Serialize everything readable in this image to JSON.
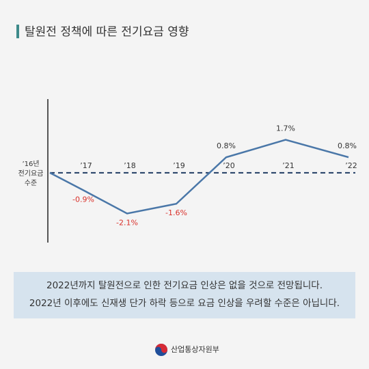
{
  "chart_data": {
    "type": "line",
    "title": "탈원전 정책에 따른 전기요금 영향",
    "categories": [
      "’16년 전기요금 수준",
      "’17",
      "’18",
      "’19",
      "’20",
      "’21",
      "’22"
    ],
    "values": [
      0,
      -0.9,
      -2.1,
      -1.6,
      0.8,
      1.7,
      0.8
    ],
    "value_labels": [
      null,
      "-0.9%",
      "-2.1%",
      "-1.6%",
      "0.8%",
      "1.7%",
      "0.8%"
    ],
    "color": "#4a77a8",
    "ylim": [
      -3.6,
      3.8
    ],
    "note_lines": [
      "2022년까지 탈원전으로 인한 전기요금 인상은 없을 것으로 전망됩니다.",
      "2022년 이후에도 신재생 단가 하락 등으로 요금 인상을 우려할 수준은 아닙니다."
    ],
    "ministry": "산업통상자원부"
  }
}
